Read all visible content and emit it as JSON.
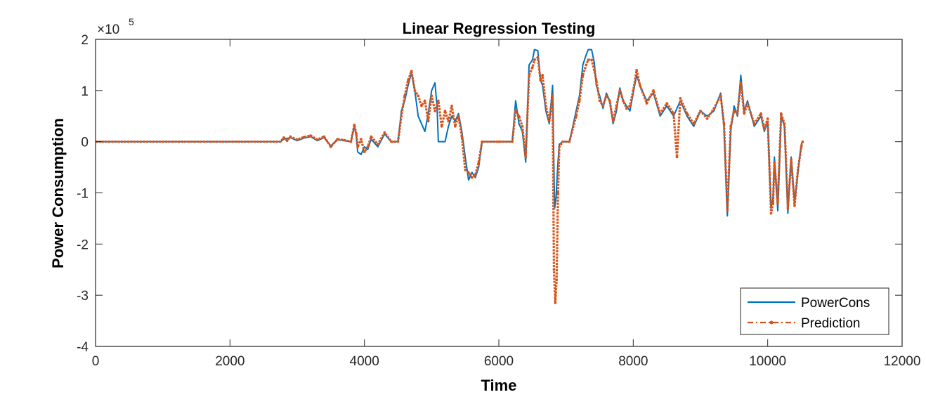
{
  "chart_data": {
    "type": "line",
    "title": "Linear Regression Testing",
    "xlabel": "Time",
    "ylabel": "Power Consumption",
    "y_exponent_label": "×10",
    "y_exponent_power": "5",
    "xlim": [
      0,
      12000
    ],
    "ylim": [
      -4,
      2
    ],
    "x_ticks": [
      0,
      2000,
      4000,
      6000,
      8000,
      10000,
      12000
    ],
    "x_tick_labels": [
      "0",
      "2000",
      "4000",
      "6000",
      "8000",
      "10000",
      "12000"
    ],
    "y_ticks": [
      -4,
      -3,
      -2,
      -1,
      0,
      1,
      2
    ],
    "y_tick_labels": [
      "-4",
      "-3",
      "-2",
      "-1",
      "0",
      "1",
      "2"
    ],
    "legend_position": "bottom-right",
    "grid": false,
    "series": [
      {
        "name": "PowerCons",
        "color": "#0072BD",
        "style": "solid",
        "points": [
          [
            0,
            0
          ],
          [
            2750,
            0
          ],
          [
            2800,
            0.05
          ],
          [
            2900,
            0.08
          ],
          [
            3000,
            0.02
          ],
          [
            3100,
            0.07
          ],
          [
            3200,
            0.1
          ],
          [
            3300,
            0.02
          ],
          [
            3400,
            0.08
          ],
          [
            3500,
            -0.08
          ],
          [
            3600,
            0.04
          ],
          [
            3700,
            0.02
          ],
          [
            3800,
            0
          ],
          [
            3850,
            0.3
          ],
          [
            3880,
            0.1
          ],
          [
            3900,
            -0.2
          ],
          [
            3950,
            -0.25
          ],
          [
            4000,
            -0.1
          ],
          [
            4050,
            -0.15
          ],
          [
            4100,
            0.05
          ],
          [
            4200,
            -0.1
          ],
          [
            4300,
            0.15
          ],
          [
            4400,
            0
          ],
          [
            4500,
            0
          ],
          [
            4550,
            0.6
          ],
          [
            4600,
            0.8
          ],
          [
            4650,
            1.1
          ],
          [
            4700,
            1.35
          ],
          [
            4750,
            1.0
          ],
          [
            4800,
            0.5
          ],
          [
            4850,
            0.35
          ],
          [
            4900,
            0.2
          ],
          [
            4950,
            0.55
          ],
          [
            5000,
            1.0
          ],
          [
            5050,
            1.15
          ],
          [
            5080,
            0.7
          ],
          [
            5100,
            0
          ],
          [
            5200,
            0
          ],
          [
            5250,
            0.3
          ],
          [
            5300,
            0.5
          ],
          [
            5350,
            0.4
          ],
          [
            5400,
            0.55
          ],
          [
            5450,
            0.2
          ],
          [
            5500,
            -0.3
          ],
          [
            5550,
            -0.75
          ],
          [
            5600,
            -0.6
          ],
          [
            5650,
            -0.7
          ],
          [
            5700,
            -0.5
          ],
          [
            5750,
            0
          ],
          [
            6000,
            0
          ],
          [
            6200,
            0
          ],
          [
            6250,
            0.8
          ],
          [
            6300,
            0.35
          ],
          [
            6350,
            0.2
          ],
          [
            6400,
            -0.4
          ],
          [
            6450,
            1.5
          ],
          [
            6500,
            1.6
          ],
          [
            6530,
            1.8
          ],
          [
            6580,
            1.78
          ],
          [
            6620,
            1.2
          ],
          [
            6650,
            1.1
          ],
          [
            6700,
            0.6
          ],
          [
            6750,
            0.35
          ],
          [
            6800,
            1.1
          ],
          [
            6830,
            -1.3
          ],
          [
            6850,
            -1.1
          ],
          [
            6880,
            -0.4
          ],
          [
            6900,
            -0.05
          ],
          [
            6950,
            0
          ],
          [
            7050,
            0
          ],
          [
            7150,
            0.6
          ],
          [
            7200,
            0.9
          ],
          [
            7250,
            1.5
          ],
          [
            7300,
            1.7
          ],
          [
            7330,
            1.8
          ],
          [
            7380,
            1.8
          ],
          [
            7420,
            1.55
          ],
          [
            7450,
            1.1
          ],
          [
            7500,
            0.9
          ],
          [
            7550,
            0.65
          ],
          [
            7600,
            0.95
          ],
          [
            7650,
            0.8
          ],
          [
            7700,
            0.35
          ],
          [
            7750,
            0.6
          ],
          [
            7800,
            1.05
          ],
          [
            7850,
            0.8
          ],
          [
            7900,
            0.7
          ],
          [
            7950,
            0.6
          ],
          [
            8000,
            0.95
          ],
          [
            8050,
            1.3
          ],
          [
            8100,
            1.1
          ],
          [
            8200,
            0.8
          ],
          [
            8300,
            0.95
          ],
          [
            8400,
            0.5
          ],
          [
            8500,
            0.7
          ],
          [
            8600,
            0.5
          ],
          [
            8700,
            0.8
          ],
          [
            8800,
            0.5
          ],
          [
            8900,
            0.3
          ],
          [
            9000,
            0.6
          ],
          [
            9100,
            0.5
          ],
          [
            9200,
            0.6
          ],
          [
            9300,
            0.95
          ],
          [
            9350,
            0.3
          ],
          [
            9400,
            -1.45
          ],
          [
            9450,
            0.2
          ],
          [
            9500,
            0.7
          ],
          [
            9550,
            0.5
          ],
          [
            9600,
            1.3
          ],
          [
            9650,
            0.6
          ],
          [
            9700,
            0.8
          ],
          [
            9800,
            0.3
          ],
          [
            9900,
            0.5
          ],
          [
            9950,
            0.2
          ],
          [
            10000,
            0.4
          ],
          [
            10050,
            -1.3
          ],
          [
            10080,
            -1.1
          ],
          [
            10100,
            -0.3
          ],
          [
            10150,
            -1.35
          ],
          [
            10200,
            0.5
          ],
          [
            10250,
            0.3
          ],
          [
            10300,
            -1.4
          ],
          [
            10350,
            -0.3
          ],
          [
            10400,
            -1.2
          ],
          [
            10450,
            -0.6
          ],
          [
            10500,
            -0.05
          ],
          [
            10520,
            0
          ]
        ]
      },
      {
        "name": "Prediction",
        "color": "#D95319",
        "style": "dashed-dot",
        "points": [
          [
            0,
            0
          ],
          [
            2750,
            0
          ],
          [
            2800,
            0.08
          ],
          [
            2850,
            0.02
          ],
          [
            2900,
            0.1
          ],
          [
            3000,
            0.04
          ],
          [
            3100,
            0.09
          ],
          [
            3200,
            0.12
          ],
          [
            3300,
            0.04
          ],
          [
            3400,
            0.1
          ],
          [
            3500,
            -0.1
          ],
          [
            3600,
            0.05
          ],
          [
            3700,
            0.03
          ],
          [
            3800,
            0
          ],
          [
            3850,
            0.33
          ],
          [
            3880,
            0.15
          ],
          [
            3900,
            -0.1
          ],
          [
            3950,
            0.05
          ],
          [
            4000,
            -0.2
          ],
          [
            4050,
            -0.1
          ],
          [
            4100,
            0.1
          ],
          [
            4200,
            -0.05
          ],
          [
            4300,
            0.18
          ],
          [
            4400,
            0
          ],
          [
            4500,
            0
          ],
          [
            4550,
            0.5
          ],
          [
            4600,
            0.9
          ],
          [
            4650,
            1.2
          ],
          [
            4700,
            1.38
          ],
          [
            4750,
            1.0
          ],
          [
            4800,
            0.9
          ],
          [
            4850,
            0.7
          ],
          [
            4900,
            0.8
          ],
          [
            4950,
            0.4
          ],
          [
            5000,
            0.9
          ],
          [
            5050,
            0.6
          ],
          [
            5100,
            0.8
          ],
          [
            5150,
            0.3
          ],
          [
            5200,
            0.6
          ],
          [
            5250,
            0.4
          ],
          [
            5300,
            0.7
          ],
          [
            5350,
            0.3
          ],
          [
            5400,
            0.5
          ],
          [
            5450,
            0.1
          ],
          [
            5500,
            -0.55
          ],
          [
            5550,
            -0.6
          ],
          [
            5600,
            -0.7
          ],
          [
            5650,
            -0.65
          ],
          [
            5700,
            -0.4
          ],
          [
            5750,
            0
          ],
          [
            6000,
            0
          ],
          [
            6200,
            0
          ],
          [
            6250,
            0.6
          ],
          [
            6300,
            0.5
          ],
          [
            6350,
            0.3
          ],
          [
            6400,
            -0.3
          ],
          [
            6450,
            1.3
          ],
          [
            6500,
            1.45
          ],
          [
            6530,
            1.6
          ],
          [
            6580,
            1.65
          ],
          [
            6620,
            1.2
          ],
          [
            6650,
            1.3
          ],
          [
            6700,
            0.7
          ],
          [
            6750,
            0.4
          ],
          [
            6800,
            0.9
          ],
          [
            6820,
            -2.5
          ],
          [
            6840,
            -3.15
          ],
          [
            6860,
            -2.7
          ],
          [
            6880,
            -1.0
          ],
          [
            6900,
            -0.1
          ],
          [
            6950,
            0
          ],
          [
            7050,
            0
          ],
          [
            7150,
            0.5
          ],
          [
            7200,
            0.8
          ],
          [
            7250,
            1.3
          ],
          [
            7300,
            1.5
          ],
          [
            7330,
            1.6
          ],
          [
            7380,
            1.6
          ],
          [
            7420,
            1.4
          ],
          [
            7450,
            1.2
          ],
          [
            7500,
            0.8
          ],
          [
            7550,
            0.7
          ],
          [
            7600,
            0.9
          ],
          [
            7650,
            0.8
          ],
          [
            7700,
            0.4
          ],
          [
            7750,
            0.7
          ],
          [
            7800,
            1.0
          ],
          [
            7850,
            0.8
          ],
          [
            7900,
            0.65
          ],
          [
            7950,
            0.7
          ],
          [
            8000,
            1.0
          ],
          [
            8050,
            1.4
          ],
          [
            8100,
            1.1
          ],
          [
            8200,
            0.75
          ],
          [
            8300,
            1.0
          ],
          [
            8400,
            0.55
          ],
          [
            8500,
            0.75
          ],
          [
            8600,
            0.55
          ],
          [
            8650,
            -0.3
          ],
          [
            8700,
            0.85
          ],
          [
            8800,
            0.55
          ],
          [
            8900,
            0.35
          ],
          [
            9000,
            0.6
          ],
          [
            9100,
            0.45
          ],
          [
            9200,
            0.65
          ],
          [
            9300,
            0.9
          ],
          [
            9350,
            0.35
          ],
          [
            9400,
            -1.35
          ],
          [
            9450,
            0.3
          ],
          [
            9500,
            0.6
          ],
          [
            9550,
            0.55
          ],
          [
            9600,
            1.15
          ],
          [
            9650,
            0.55
          ],
          [
            9700,
            0.75
          ],
          [
            9800,
            0.35
          ],
          [
            9900,
            0.55
          ],
          [
            9950,
            0.25
          ],
          [
            10000,
            0.45
          ],
          [
            10050,
            -1.4
          ],
          [
            10080,
            -1.2
          ],
          [
            10100,
            -0.4
          ],
          [
            10150,
            -1.2
          ],
          [
            10200,
            0.55
          ],
          [
            10250,
            0.35
          ],
          [
            10300,
            -1.3
          ],
          [
            10350,
            -0.35
          ],
          [
            10400,
            -1.25
          ],
          [
            10450,
            -0.55
          ],
          [
            10500,
            -0.1
          ],
          [
            10520,
            0
          ]
        ]
      }
    ]
  }
}
